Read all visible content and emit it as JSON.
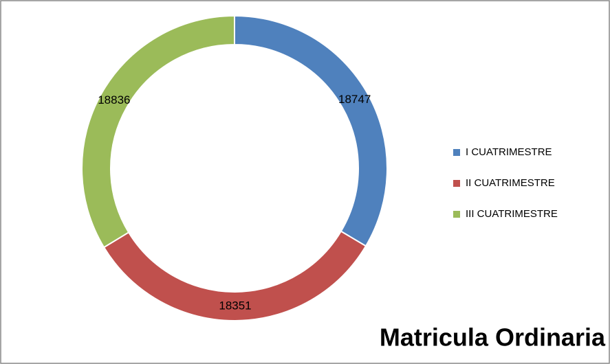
{
  "chart_data": {
    "type": "doughnut",
    "title": "Matricula Ordinaria",
    "categories": [
      "I CUATRIMESTRE",
      "II CUATRIMESTRE",
      "III CUATRIMESTRE"
    ],
    "values": [
      18747,
      18351,
      18836
    ],
    "colors": [
      "#4f81bd",
      "#c0504d",
      "#9bbb59"
    ],
    "legend": "right"
  }
}
